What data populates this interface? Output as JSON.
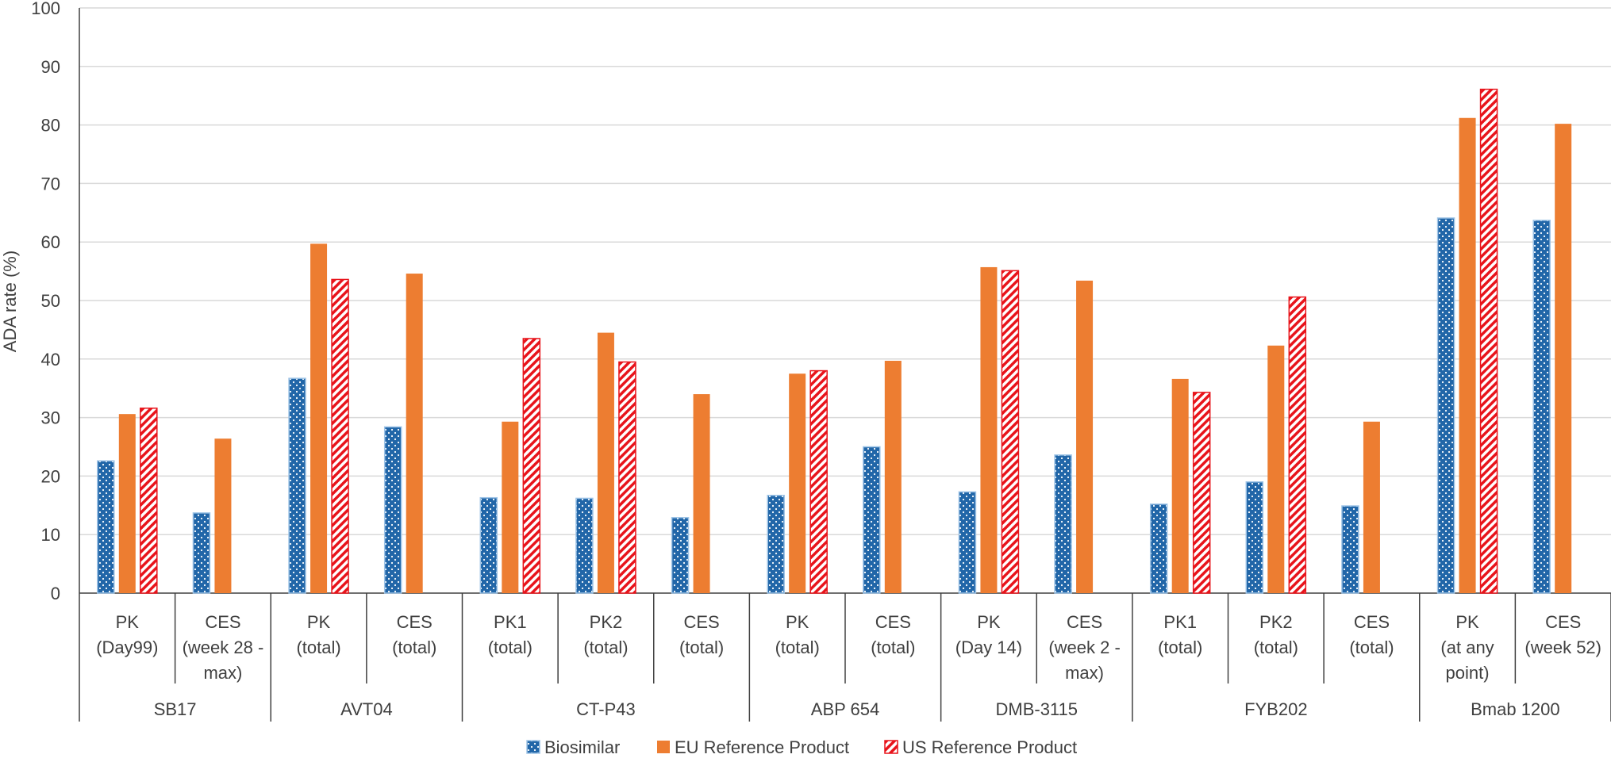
{
  "chart_data": {
    "type": "bar",
    "ylabel": "ADA rate (%)",
    "ylim": [
      0,
      100
    ],
    "yticks": [
      0,
      10,
      20,
      30,
      40,
      50,
      60,
      70,
      80,
      90,
      100
    ],
    "grid": true,
    "legend_position": "bottom",
    "groups": [
      {
        "name": "SB17",
        "categories": [
          {
            "label": [
              "PK",
              "(Day99)"
            ],
            "values": [
              22.6,
              30.6,
              31.6
            ]
          },
          {
            "label": [
              "CES",
              "(week 28 -",
              "max)"
            ],
            "values": [
              13.7,
              26.4,
              null
            ]
          }
        ]
      },
      {
        "name": "AVT04",
        "categories": [
          {
            "label": [
              "PK",
              "(total)"
            ],
            "values": [
              36.7,
              59.7,
              53.6
            ]
          },
          {
            "label": [
              "CES",
              "(total)"
            ],
            "values": [
              28.4,
              54.6,
              null
            ]
          }
        ]
      },
      {
        "name": "CT-P43",
        "categories": [
          {
            "label": [
              "PK1",
              "(total)"
            ],
            "values": [
              16.3,
              29.3,
              43.5
            ]
          },
          {
            "label": [
              "PK2",
              "(total)"
            ],
            "values": [
              16.2,
              44.5,
              39.5
            ]
          },
          {
            "label": [
              "CES",
              "(total)"
            ],
            "values": [
              12.9,
              34.0,
              null
            ]
          }
        ]
      },
      {
        "name": "ABP 654",
        "categories": [
          {
            "label": [
              "PK",
              "(total)"
            ],
            "values": [
              16.7,
              37.5,
              38.0
            ]
          },
          {
            "label": [
              "CES",
              "(total)"
            ],
            "values": [
              25.0,
              39.7,
              null
            ]
          }
        ]
      },
      {
        "name": "DMB-3115",
        "categories": [
          {
            "label": [
              "PK",
              "(Day 14)"
            ],
            "values": [
              17.3,
              55.7,
              55.1
            ]
          },
          {
            "label": [
              "CES",
              "(week 2 -",
              "max)"
            ],
            "values": [
              23.6,
              53.4,
              null
            ]
          }
        ]
      },
      {
        "name": "FYB202",
        "categories": [
          {
            "label": [
              "PK1",
              "(total)"
            ],
            "values": [
              15.2,
              36.6,
              34.3
            ]
          },
          {
            "label": [
              "PK2",
              "(total)"
            ],
            "values": [
              19.0,
              42.3,
              50.6
            ]
          },
          {
            "label": [
              "CES",
              "(total)"
            ],
            "values": [
              14.9,
              29.3,
              null
            ]
          }
        ]
      },
      {
        "name": "Bmab 1200",
        "categories": [
          {
            "label": [
              "PK",
              "(at any",
              "point)"
            ],
            "values": [
              64.1,
              81.2,
              86.1
            ]
          },
          {
            "label": [
              "CES",
              "(week 52)"
            ],
            "values": [
              63.7,
              80.2,
              null
            ]
          }
        ]
      }
    ],
    "series": [
      {
        "name": "Biosimilar",
        "color": "#2166a8",
        "pattern": "dots"
      },
      {
        "name": "EU Reference Product",
        "color": "#ed7d31",
        "pattern": "solid"
      },
      {
        "name": "US Reference Product",
        "color": "#e8141b",
        "pattern": "diagonal-stripes"
      }
    ]
  }
}
